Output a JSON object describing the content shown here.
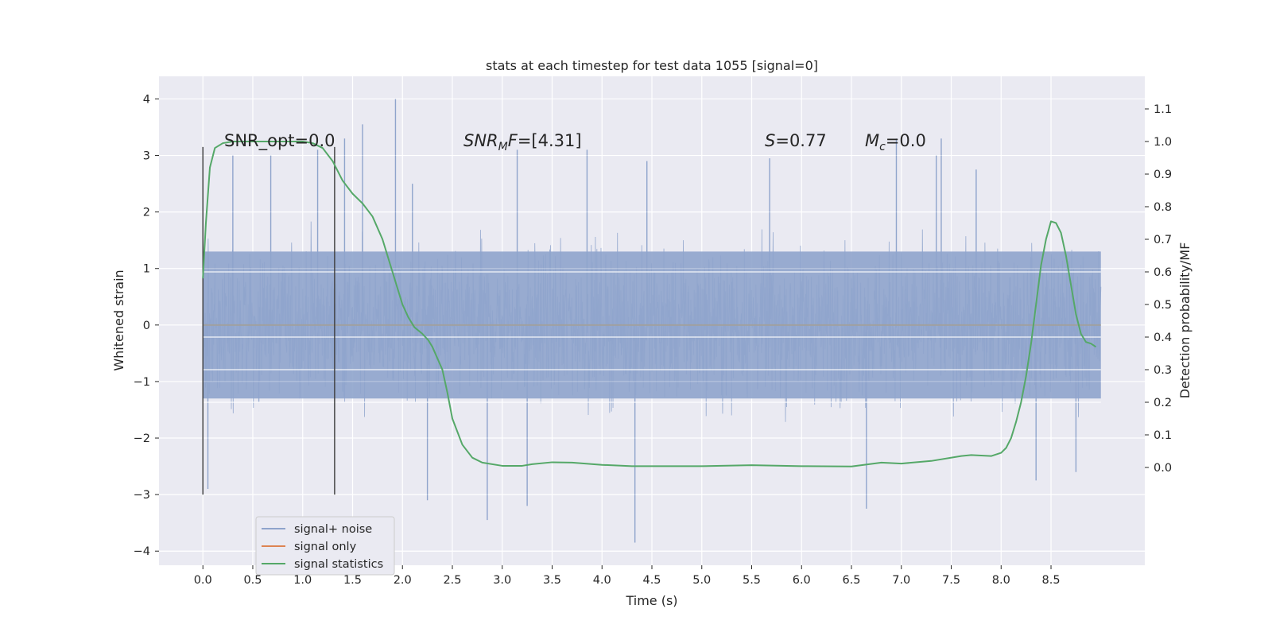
{
  "chart_data": {
    "type": "line",
    "title": "stats at each timestep for test data 1055 [signal=0]",
    "xlabel": "Time (s)",
    "ylabel": "Whitened strain",
    "y2label": "Detection probability/MF",
    "xlim": [
      -0.44,
      9.44
    ],
    "ylim": [
      -4.25,
      4.4
    ],
    "y2lim": [
      -0.3,
      1.2
    ],
    "x_ticks": [
      0.0,
      0.5,
      1.0,
      1.5,
      2.0,
      2.5,
      3.0,
      3.5,
      4.0,
      4.5,
      5.0,
      5.5,
      6.0,
      6.5,
      7.0,
      7.5,
      8.0,
      8.5
    ],
    "x_tick_labels": [
      "0.0",
      "0.5",
      "1.0",
      "1.5",
      "2.0",
      "2.5",
      "3.0",
      "3.5",
      "4.0",
      "4.5",
      "5.0",
      "5.5",
      "6.0",
      "6.5",
      "7.0",
      "7.5",
      "8.0",
      "8.5"
    ],
    "y_ticks": [
      4,
      3,
      2,
      1,
      0,
      -1,
      -2,
      -3,
      -4
    ],
    "y_tick_labels": [
      "4",
      "3",
      "2",
      "1",
      "0",
      "−1",
      "−2",
      "−3",
      "−4"
    ],
    "y2_ticks": [
      1.1,
      1.0,
      0.9,
      0.8,
      0.7,
      0.6,
      0.5,
      0.4,
      0.3,
      0.2,
      0.1,
      0.0
    ],
    "y2_tick_labels": [
      "1.1",
      "1.0",
      "0.9",
      "0.8",
      "0.7",
      "0.6",
      "0.5",
      "0.4",
      "0.3",
      "0.2",
      "0.1",
      "0.0"
    ],
    "grid": true,
    "legend_placement": "lower-left",
    "colors": {
      "background": "#eaeaf2",
      "noise": "#8fa4cc",
      "signal": "#dd8452",
      "stats": "#55a868",
      "marker": "#3c3c3c"
    },
    "series": [
      {
        "name": "signal+ noise",
        "axis": "left",
        "kind": "noise-band",
        "x_range": [
          0.0,
          9.0
        ],
        "typical_amplitude": 1.3,
        "spikes": [
          {
            "x": 0.05,
            "y": -2.9
          },
          {
            "x": 0.3,
            "y": 3.0
          },
          {
            "x": 0.68,
            "y": 3.0
          },
          {
            "x": 1.15,
            "y": 3.1
          },
          {
            "x": 1.42,
            "y": 3.3
          },
          {
            "x": 1.6,
            "y": 3.55
          },
          {
            "x": 1.93,
            "y": 4.0
          },
          {
            "x": 2.1,
            "y": 2.5
          },
          {
            "x": 2.25,
            "y": -3.1
          },
          {
            "x": 2.85,
            "y": -3.45
          },
          {
            "x": 3.15,
            "y": 3.1
          },
          {
            "x": 3.25,
            "y": -3.2
          },
          {
            "x": 3.85,
            "y": 3.1
          },
          {
            "x": 4.33,
            "y": -3.85
          },
          {
            "x": 4.45,
            "y": 2.9
          },
          {
            "x": 5.68,
            "y": 2.95
          },
          {
            "x": 6.65,
            "y": -3.25
          },
          {
            "x": 6.95,
            "y": 3.3
          },
          {
            "x": 7.35,
            "y": 3.0
          },
          {
            "x": 7.4,
            "y": 3.3
          },
          {
            "x": 7.75,
            "y": 2.75
          },
          {
            "x": 8.35,
            "y": -2.75
          },
          {
            "x": 8.75,
            "y": -2.6
          }
        ]
      },
      {
        "name": "signal only",
        "axis": "left",
        "x": [
          0.0,
          9.0
        ],
        "y": [
          0.0,
          0.0
        ]
      },
      {
        "name": "signal statistics",
        "axis": "right",
        "x": [
          0.0,
          0.03,
          0.07,
          0.12,
          0.2,
          0.3,
          0.5,
          0.8,
          1.0,
          1.1,
          1.2,
          1.3,
          1.4,
          1.5,
          1.6,
          1.7,
          1.8,
          1.9,
          2.0,
          2.06,
          2.12,
          2.2,
          2.26,
          2.3,
          2.4,
          2.45,
          2.5,
          2.6,
          2.7,
          2.8,
          3.0,
          3.2,
          3.3,
          3.5,
          3.7,
          4.0,
          4.3,
          4.7,
          5.0,
          5.5,
          6.0,
          6.5,
          6.8,
          7.0,
          7.3,
          7.6,
          7.7,
          7.9,
          8.0,
          8.05,
          8.1,
          8.15,
          8.2,
          8.25,
          8.3,
          8.35,
          8.4,
          8.45,
          8.5,
          8.55,
          8.6,
          8.65,
          8.7,
          8.75,
          8.8,
          8.85,
          8.9,
          8.95
        ],
        "y": [
          0.58,
          0.75,
          0.92,
          0.98,
          0.995,
          1.0,
          1.0,
          1.0,
          1.0,
          0.995,
          0.98,
          0.94,
          0.88,
          0.84,
          0.81,
          0.77,
          0.7,
          0.6,
          0.5,
          0.46,
          0.43,
          0.41,
          0.39,
          0.37,
          0.3,
          0.23,
          0.15,
          0.07,
          0.03,
          0.015,
          0.005,
          0.005,
          0.01,
          0.016,
          0.015,
          0.008,
          0.004,
          0.004,
          0.004,
          0.007,
          0.004,
          0.003,
          0.015,
          0.012,
          0.02,
          0.035,
          0.038,
          0.035,
          0.045,
          0.06,
          0.09,
          0.14,
          0.2,
          0.28,
          0.38,
          0.5,
          0.62,
          0.7,
          0.755,
          0.75,
          0.72,
          0.65,
          0.56,
          0.47,
          0.41,
          0.385,
          0.38,
          0.37
        ]
      }
    ],
    "marker_lines": [
      {
        "x": 0.0,
        "y_from": -3.0,
        "y_to": 3.15,
        "axis": "left"
      },
      {
        "x": 1.32,
        "y_from": -3.0,
        "y_to": 3.15,
        "axis": "left"
      }
    ],
    "annotations": {
      "snr_opt": "SNR_opt=0.0",
      "snr_mf_base": "SNR",
      "snr_mf_sub": "M",
      "snr_mf_mid": "F",
      "snr_mf_value": "=[4.31]",
      "s_label": "S",
      "s_value": "=0.77",
      "mc_base": "M",
      "mc_sub": "c",
      "mc_value": "=0.0"
    }
  }
}
